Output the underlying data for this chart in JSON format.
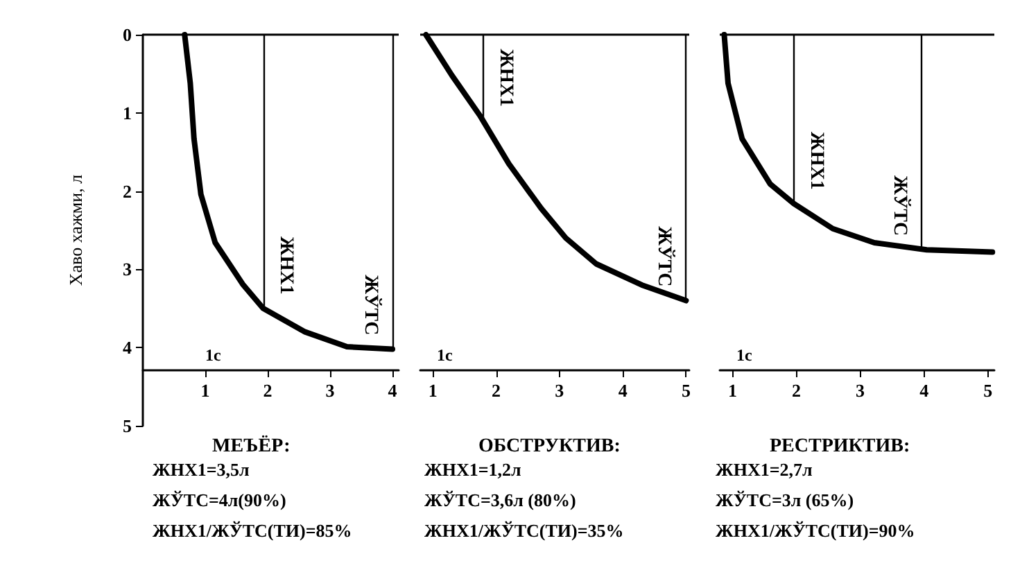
{
  "chart_data": [
    {
      "type": "line",
      "title": "МЕЪЁР:",
      "ylabel": "Хаво хажми, л",
      "xlim": [
        0,
        4.1
      ],
      "xticks": [
        1,
        2,
        3,
        4
      ],
      "ylim": [
        5,
        0
      ],
      "yticks": [
        0,
        1,
        2,
        3,
        4,
        5
      ],
      "series": [
        {
          "color": "#000000",
          "x": [
            0.67,
            0.76,
            0.82,
            0.93,
            1.16,
            1.6,
            1.93,
            2.6,
            3.27,
            4.0
          ],
          "values": [
            0,
            0.62,
            1.33,
            2.04,
            2.66,
            3.19,
            3.5,
            3.8,
            3.99,
            4.02
          ]
        }
      ],
      "ref_lines": [
        {
          "axis": "y",
          "value": 0
        }
      ],
      "annotations": [
        {
          "text": "ЖНХ1",
          "x": 1.93,
          "y": 3.5
        },
        {
          "text": "ЖЎТС",
          "x": 4.0,
          "y": 4.02
        },
        "1с",
        "ЖНХ1=3,5л",
        "ЖЎТС=4л(90%)",
        "ЖНХ1/ЖЎТС(ТИ)=85%"
      ]
    },
    {
      "type": "line",
      "title": "ОБСТРУКТИВ:",
      "xlim": [
        0.8,
        5.05
      ],
      "xticks": [
        1,
        2,
        3,
        4,
        5
      ],
      "ylim": [
        5,
        0
      ],
      "yticks": [
        0,
        1,
        2,
        3,
        4,
        5
      ],
      "tick_labels": "x",
      "series": [
        {
          "color": "#000000",
          "x": [
            0.89,
            1.3,
            1.74,
            2.2,
            2.71,
            3.1,
            3.58,
            4.3,
            5.0
          ],
          "values": [
            0,
            0.52,
            1.03,
            1.65,
            2.22,
            2.6,
            2.93,
            3.2,
            3.4
          ]
        }
      ],
      "ref_lines": [
        {
          "axis": "y",
          "value": 0
        }
      ],
      "annotations": [
        {
          "text": "ЖНХ1",
          "x": 1.8,
          "y": 1.1
        },
        {
          "text": "ЖЎТС",
          "x": 5.0,
          "y": 3.4
        },
        "1с",
        "ЖНХ1=1,2л",
        "ЖЎТС=3,6л (80%)",
        "ЖНХ1/ЖЎТС(ТИ)=35%"
      ]
    },
    {
      "type": "line",
      "title": "РЕСТРИКТИВ:",
      "xlim": [
        0.8,
        5.1
      ],
      "xticks": [
        1,
        2,
        3,
        4,
        5
      ],
      "ylim": [
        5,
        0
      ],
      "yticks": [
        0,
        1,
        2,
        3,
        4,
        5
      ],
      "tick_labels": "x",
      "series": [
        {
          "color": "#000000",
          "x": [
            0.87,
            0.93,
            1.15,
            1.59,
            1.96,
            2.57,
            3.22,
            4.04,
            5.07
          ],
          "values": [
            0,
            0.62,
            1.33,
            1.91,
            2.16,
            2.48,
            2.66,
            2.75,
            2.78
          ]
        }
      ],
      "ref_lines": [
        {
          "axis": "y",
          "value": 0
        }
      ],
      "annotations": [
        {
          "text": "ЖНХ1",
          "x": 1.96,
          "y": 2.16
        },
        {
          "text": "ЖЎТС",
          "x": 3.96,
          "y": 2.75
        },
        "1с",
        "ЖНХ1=2,7л",
        "ЖЎТС=3л (65%)",
        "ЖНХ1/ЖЎТС(ТИ)=90%"
      ]
    }
  ]
}
